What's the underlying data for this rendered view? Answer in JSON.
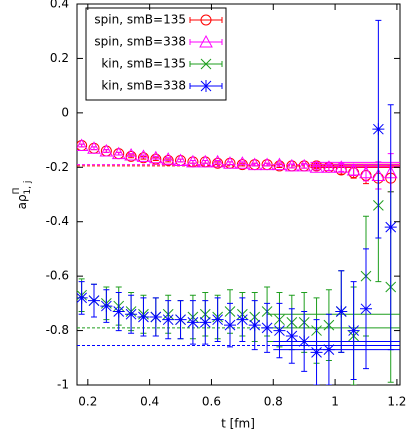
{
  "chart_data": {
    "type": "errorbar-scatter",
    "xlabel": "t [fm]",
    "ylabel": "aρ",
    "ylabel_sup": "Π",
    "ylabel_sub": "1, j",
    "xlim": [
      0.165,
      1.21
    ],
    "ylim": [
      -1,
      0.4
    ],
    "xticks": [
      0.2,
      0.4,
      0.6,
      0.8,
      1,
      1.2
    ],
    "yticks": [
      -1,
      -0.8,
      -0.6,
      -0.4,
      -0.2,
      0,
      0.2,
      0.4
    ],
    "x": [
      0.18,
      0.22,
      0.26,
      0.3,
      0.34,
      0.38,
      0.42,
      0.46,
      0.5,
      0.54,
      0.58,
      0.62,
      0.66,
      0.7,
      0.74,
      0.78,
      0.82,
      0.86,
      0.9,
      0.94,
      0.98,
      1.02,
      1.06,
      1.1,
      1.14,
      1.18
    ],
    "series": [
      {
        "name": "spin, smB=135",
        "color": "#ff0000",
        "marker": "circle",
        "values": [
          -0.12,
          -0.13,
          -0.14,
          -0.15,
          -0.16,
          -0.165,
          -0.17,
          -0.175,
          -0.175,
          -0.18,
          -0.18,
          -0.185,
          -0.185,
          -0.19,
          -0.19,
          -0.19,
          -0.195,
          -0.195,
          -0.195,
          -0.195,
          -0.2,
          -0.21,
          -0.22,
          -0.23,
          -0.24,
          -0.24
        ],
        "errors": [
          0.005,
          0.005,
          0.005,
          0.005,
          0.005,
          0.005,
          0.005,
          0.005,
          0.005,
          0.005,
          0.005,
          0.005,
          0.005,
          0.005,
          0.005,
          0.005,
          0.006,
          0.007,
          0.008,
          0.01,
          0.012,
          0.015,
          0.02,
          0.03,
          0.04,
          0.05
        ],
        "fit": {
          "value": -0.195,
          "error": 0.006,
          "range": [
            0.92,
            1.21
          ]
        }
      },
      {
        "name": "spin, smB=338",
        "color": "#ff00ff",
        "marker": "triangle",
        "values": [
          -0.12,
          -0.13,
          -0.14,
          -0.15,
          -0.155,
          -0.16,
          -0.165,
          -0.17,
          -0.175,
          -0.18,
          -0.18,
          -0.18,
          -0.185,
          -0.185,
          -0.19,
          -0.19,
          -0.19,
          -0.195,
          -0.195,
          -0.2,
          -0.2,
          -0.2,
          -0.21,
          -0.22,
          -0.23,
          -0.22
        ],
        "errors": [
          0.005,
          0.005,
          0.005,
          0.005,
          0.005,
          0.005,
          0.005,
          0.005,
          0.005,
          0.005,
          0.005,
          0.005,
          0.005,
          0.005,
          0.005,
          0.005,
          0.006,
          0.007,
          0.008,
          0.01,
          0.012,
          0.015,
          0.02,
          0.03,
          0.05,
          0.07
        ],
        "fit": {
          "value": -0.19,
          "error": 0.008,
          "range": [
            0.92,
            1.21
          ]
        }
      },
      {
        "name": "kin, smB=135",
        "color": "#1e9e1e",
        "marker": "cross",
        "values": [
          -0.67,
          -0.69,
          -0.7,
          -0.71,
          -0.73,
          -0.74,
          -0.75,
          -0.74,
          -0.76,
          -0.75,
          -0.74,
          -0.75,
          -0.73,
          -0.74,
          -0.75,
          -0.73,
          -0.76,
          -0.77,
          -0.77,
          -0.8,
          -0.78,
          -0.73,
          -0.82,
          -0.6,
          -0.34,
          -0.64
        ],
        "errors": [
          0.06,
          0.06,
          0.06,
          0.07,
          0.07,
          0.07,
          0.07,
          0.07,
          0.07,
          0.08,
          0.08,
          0.08,
          0.08,
          0.08,
          0.09,
          0.09,
          0.1,
          0.1,
          0.11,
          0.12,
          0.13,
          0.15,
          0.18,
          0.22,
          0.28,
          0.35
        ],
        "fit": {
          "value": -0.79,
          "error": 0.05,
          "range": [
            0.78,
            1.21
          ]
        }
      },
      {
        "name": "kin, smB=338",
        "color": "#0000ff",
        "marker": "star",
        "values": [
          -0.68,
          -0.69,
          -0.71,
          -0.73,
          -0.74,
          -0.75,
          -0.75,
          -0.76,
          -0.76,
          -0.77,
          -0.77,
          -0.76,
          -0.78,
          -0.76,
          -0.78,
          -0.79,
          -0.8,
          -0.82,
          -0.84,
          -0.88,
          -0.87,
          -0.73,
          -0.8,
          -0.72,
          -0.06,
          -0.42
        ],
        "errors": [
          0.06,
          0.06,
          0.06,
          0.07,
          0.07,
          0.07,
          0.07,
          0.07,
          0.07,
          0.08,
          0.08,
          0.08,
          0.08,
          0.08,
          0.09,
          0.09,
          0.1,
          0.1,
          0.11,
          0.12,
          0.13,
          0.15,
          0.18,
          0.22,
          0.4,
          0.45
        ],
        "fit": {
          "value": -0.855,
          "error": 0.015,
          "range": [
            0.8,
            1.21
          ]
        }
      }
    ]
  }
}
